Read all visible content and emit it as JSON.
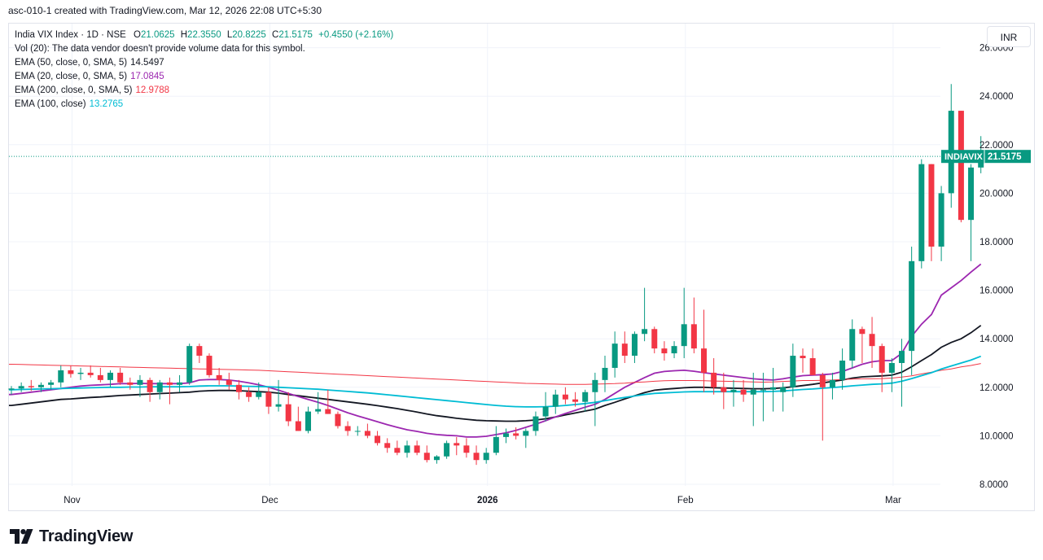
{
  "caption": "asc-010-1 created with TradingView.com, Mar 12, 2026 22:08 UTC+5:30",
  "legend": {
    "symbol": "India VIX Index · 1D · NSE",
    "ohlc": [
      {
        "label": "O",
        "value": "21.0625"
      },
      {
        "label": "H",
        "value": "22.3550"
      },
      {
        "label": "L",
        "value": "20.8225"
      },
      {
        "label": "C",
        "value": "21.5175"
      }
    ],
    "change": "+0.4550 (+2.16%)",
    "volume_note": "Vol (20): The data vendor doesn't provide volume data for this symbol.",
    "indicators": [
      {
        "label": "EMA (50, close, 0, SMA, 5)",
        "value": "14.5497",
        "color": "#131722"
      },
      {
        "label": "EMA (20, close, 0, SMA, 5)",
        "value": "17.0845",
        "color": "#9c27b0"
      },
      {
        "label": "EMA (200, close, 0, SMA, 5)",
        "value": "12.9788",
        "color": "#f23645"
      },
      {
        "label": "EMA (100, close)",
        "value": "13.2765",
        "color": "#00bcd4"
      }
    ]
  },
  "currency": "INR",
  "price_tag": {
    "symbol": "INDIAVIX",
    "value": "21.5175"
  },
  "brand": "TradingView",
  "colors": {
    "up": "#089981",
    "down": "#f23645",
    "ema50": "#131722",
    "ema20": "#9c27b0",
    "ema200": "#f23645",
    "ema100": "#00bcd4",
    "grid": "#f0f3fa"
  },
  "chart_data": {
    "type": "candlestick",
    "title": "India VIX Index · 1D · NSE",
    "ylim": [
      8,
      26
    ],
    "y_ticks": [
      "8.0000",
      "10.0000",
      "12.0000",
      "14.0000",
      "16.0000",
      "18.0000",
      "20.0000",
      "22.0000",
      "24.0000",
      "26.0000"
    ],
    "x_ticks": [
      {
        "label": "Nov",
        "bar_index": 3
      },
      {
        "label": "Dec",
        "bar_index": 23
      },
      {
        "label": "2026",
        "bar_index": 45
      },
      {
        "label": "Feb",
        "bar_index": 65
      },
      {
        "label": "Mar",
        "bar_index": 86
      }
    ],
    "last_price": 21.5175,
    "candles": [
      [
        11.9,
        12.05,
        11.7,
        11.95
      ],
      [
        11.95,
        12.2,
        11.8,
        12.05
      ],
      [
        12.05,
        12.3,
        11.85,
        12.0
      ],
      [
        12.0,
        12.2,
        11.8,
        12.1
      ],
      [
        12.1,
        12.3,
        11.9,
        12.2
      ],
      [
        12.2,
        12.9,
        12.0,
        12.7
      ],
      [
        12.7,
        12.9,
        12.4,
        12.55
      ],
      [
        12.55,
        12.8,
        12.3,
        12.6
      ],
      [
        12.6,
        12.9,
        12.4,
        12.5
      ],
      [
        12.5,
        12.8,
        12.2,
        12.3
      ],
      [
        12.3,
        12.7,
        12.0,
        12.6
      ],
      [
        12.6,
        12.8,
        12.1,
        12.2
      ],
      [
        12.2,
        12.4,
        11.9,
        12.1
      ],
      [
        12.1,
        12.5,
        11.6,
        12.3
      ],
      [
        12.3,
        12.4,
        11.4,
        11.8
      ],
      [
        11.8,
        12.3,
        11.5,
        12.2
      ],
      [
        12.2,
        12.4,
        11.3,
        12.1
      ],
      [
        12.1,
        12.5,
        11.8,
        12.2
      ],
      [
        12.2,
        13.8,
        12.1,
        13.7
      ],
      [
        13.7,
        13.8,
        13.0,
        13.3
      ],
      [
        13.3,
        13.4,
        12.4,
        12.5
      ],
      [
        12.5,
        12.8,
        12.1,
        12.3
      ],
      [
        12.3,
        12.6,
        11.9,
        12.1
      ],
      [
        12.1,
        12.3,
        11.5,
        11.8
      ],
      [
        11.8,
        12.0,
        11.4,
        11.6
      ],
      [
        11.6,
        12.2,
        11.5,
        11.8
      ],
      [
        11.8,
        12.0,
        10.9,
        11.2
      ],
      [
        11.2,
        12.3,
        11.0,
        11.3
      ],
      [
        11.3,
        11.8,
        10.4,
        10.6
      ],
      [
        10.6,
        11.2,
        10.2,
        10.2
      ],
      [
        10.2,
        11.2,
        10.1,
        11.0
      ],
      [
        11.0,
        11.8,
        10.9,
        11.1
      ],
      [
        11.1,
        11.9,
        10.9,
        10.9
      ],
      [
        10.9,
        11.0,
        10.3,
        10.4
      ],
      [
        10.4,
        10.6,
        10.0,
        10.2
      ],
      [
        10.2,
        10.4,
        10.0,
        10.2
      ],
      [
        10.2,
        10.5,
        9.9,
        10.0
      ],
      [
        10.0,
        10.2,
        9.6,
        9.7
      ],
      [
        9.7,
        9.9,
        9.3,
        9.5
      ],
      [
        9.5,
        9.8,
        9.2,
        9.3
      ],
      [
        9.3,
        9.8,
        9.1,
        9.6
      ],
      [
        9.6,
        9.8,
        9.2,
        9.3
      ],
      [
        9.3,
        9.6,
        8.9,
        9.0
      ],
      [
        9.0,
        9.2,
        8.85,
        9.15
      ],
      [
        9.15,
        9.8,
        9.05,
        9.7
      ],
      [
        9.7,
        9.95,
        9.2,
        9.6
      ],
      [
        9.6,
        9.9,
        9.1,
        9.3
      ],
      [
        9.3,
        9.6,
        8.8,
        9.0
      ],
      [
        9.0,
        9.5,
        8.85,
        9.3
      ],
      [
        9.3,
        10.4,
        9.2,
        9.95
      ],
      [
        9.95,
        10.3,
        9.7,
        10.1
      ],
      [
        10.1,
        10.35,
        9.85,
        10.0
      ],
      [
        10.0,
        10.3,
        9.5,
        10.2
      ],
      [
        10.2,
        11.0,
        10.0,
        10.8
      ],
      [
        10.8,
        11.8,
        10.6,
        11.2
      ],
      [
        11.2,
        11.9,
        10.9,
        11.7
      ],
      [
        11.7,
        12.0,
        11.3,
        11.5
      ],
      [
        11.5,
        11.8,
        11.2,
        11.4
      ],
      [
        11.4,
        11.9,
        11.0,
        11.8
      ],
      [
        11.8,
        12.6,
        10.4,
        12.3
      ],
      [
        12.3,
        13.3,
        11.8,
        12.8
      ],
      [
        12.8,
        14.3,
        12.4,
        13.8
      ],
      [
        13.8,
        14.3,
        13.0,
        13.3
      ],
      [
        13.3,
        14.3,
        13.0,
        14.2
      ],
      [
        14.2,
        16.1,
        13.9,
        14.4
      ],
      [
        14.4,
        14.5,
        13.4,
        13.6
      ],
      [
        13.6,
        13.9,
        13.1,
        13.4
      ],
      [
        13.4,
        13.9,
        13.2,
        13.7
      ],
      [
        13.7,
        16.1,
        13.2,
        14.6
      ],
      [
        14.6,
        15.7,
        13.4,
        13.6
      ],
      [
        13.6,
        15.2,
        11.8,
        12.6
      ],
      [
        12.6,
        13.2,
        11.7,
        12.0
      ],
      [
        12.0,
        12.6,
        11.1,
        11.8
      ],
      [
        11.8,
        12.3,
        11.2,
        11.9
      ],
      [
        11.9,
        12.3,
        11.4,
        11.7
      ],
      [
        11.7,
        12.6,
        10.4,
        11.9
      ],
      [
        11.9,
        12.6,
        10.6,
        11.9
      ],
      [
        11.9,
        12.8,
        11.0,
        12.0
      ],
      [
        11.8,
        12.2,
        11.0,
        12.0
      ],
      [
        12.0,
        13.8,
        11.6,
        13.3
      ],
      [
        13.3,
        13.6,
        12.6,
        13.2
      ],
      [
        13.2,
        13.6,
        12.6,
        12.5
      ],
      [
        12.5,
        12.6,
        9.8,
        12.0
      ],
      [
        12.0,
        12.6,
        11.5,
        12.3
      ],
      [
        12.3,
        13.6,
        11.9,
        13.1
      ],
      [
        13.1,
        14.8,
        12.8,
        14.4
      ],
      [
        14.4,
        14.5,
        13.0,
        14.2
      ],
      [
        14.2,
        14.9,
        12.8,
        13.7
      ],
      [
        13.7,
        13.8,
        11.8,
        12.6
      ],
      [
        12.6,
        13.2,
        11.8,
        13.0
      ],
      [
        13.0,
        14.0,
        11.2,
        13.5
      ],
      [
        13.5,
        17.8,
        12.5,
        17.2
      ],
      [
        17.2,
        21.4,
        16.9,
        21.2
      ],
      [
        21.2,
        21.2,
        17.2,
        17.8
      ],
      [
        17.8,
        20.3,
        17.2,
        20.0
      ],
      [
        20.0,
        24.5,
        19.4,
        23.4
      ],
      [
        23.4,
        23.4,
        18.8,
        18.9
      ],
      [
        18.9,
        21.2,
        17.2,
        21.06
      ],
      [
        21.06,
        22.355,
        20.8225,
        21.5175
      ]
    ],
    "series": [
      {
        "name": "EMA (50, close, 0, SMA, 5)",
        "values": [
          11.25,
          11.3,
          11.35,
          11.4,
          11.45,
          11.5,
          11.52,
          11.55,
          11.58,
          11.6,
          11.63,
          11.66,
          11.68,
          11.7,
          11.72,
          11.74,
          11.76,
          11.78,
          11.8,
          11.84,
          11.86,
          11.87,
          11.87,
          11.86,
          11.84,
          11.82,
          11.8,
          11.76,
          11.7,
          11.65,
          11.6,
          11.55,
          11.5,
          11.45,
          11.4,
          11.35,
          11.3,
          11.24,
          11.18,
          11.12,
          11.05,
          10.98,
          10.9,
          10.83,
          10.78,
          10.72,
          10.68,
          10.64,
          10.62,
          10.61,
          10.6,
          10.6,
          10.62,
          10.65,
          10.7,
          10.78,
          10.86,
          10.94,
          11.02,
          11.1,
          11.25,
          11.38,
          11.52,
          11.65,
          11.78,
          11.88,
          11.92,
          11.95,
          11.98,
          12.0,
          12.0,
          11.98,
          11.97,
          11.96,
          11.95,
          11.94,
          11.94,
          11.95,
          11.98,
          12.02,
          12.07,
          12.12,
          12.18,
          12.24,
          12.3,
          12.38,
          12.43,
          12.45,
          12.47,
          12.5,
          12.62,
          12.85,
          13.1,
          13.35,
          13.65,
          13.85,
          14.0,
          14.25,
          14.55
        ]
      },
      {
        "name": "EMA (20, close, 0, SMA, 5)",
        "values": [
          11.7,
          11.75,
          11.8,
          11.85,
          11.9,
          11.95,
          12.0,
          12.05,
          12.08,
          12.1,
          12.12,
          12.15,
          12.15,
          12.16,
          12.15,
          12.15,
          12.15,
          12.15,
          12.18,
          12.3,
          12.32,
          12.32,
          12.3,
          12.25,
          12.18,
          12.1,
          12.0,
          11.88,
          11.75,
          11.62,
          11.5,
          11.38,
          11.25,
          11.1,
          10.95,
          10.82,
          10.7,
          10.58,
          10.46,
          10.35,
          10.25,
          10.18,
          10.1,
          10.05,
          10.02,
          10.0,
          9.95,
          9.95,
          9.98,
          10.05,
          10.12,
          10.22,
          10.35,
          10.48,
          10.62,
          10.78,
          10.92,
          11.05,
          11.18,
          11.3,
          11.5,
          11.75,
          12.0,
          12.2,
          12.4,
          12.58,
          12.65,
          12.68,
          12.7,
          12.66,
          12.6,
          12.55,
          12.5,
          12.45,
          12.4,
          12.35,
          12.32,
          12.3,
          12.35,
          12.42,
          12.48,
          12.5,
          12.52,
          12.55,
          12.65,
          12.8,
          12.95,
          13.05,
          13.1,
          13.1,
          13.4,
          14.1,
          14.6,
          15.0,
          15.8,
          16.1,
          16.4,
          16.75,
          17.08
        ]
      },
      {
        "name": "EMA (200, close, 0, SMA, 5)",
        "values": [
          12.95,
          12.94,
          12.93,
          12.92,
          12.91,
          12.9,
          12.89,
          12.88,
          12.87,
          12.86,
          12.85,
          12.84,
          12.83,
          12.82,
          12.81,
          12.8,
          12.79,
          12.78,
          12.77,
          12.76,
          12.75,
          12.74,
          12.73,
          12.72,
          12.71,
          12.7,
          12.68,
          12.66,
          12.64,
          12.62,
          12.6,
          12.58,
          12.56,
          12.54,
          12.52,
          12.5,
          12.48,
          12.46,
          12.44,
          12.42,
          12.4,
          12.38,
          12.36,
          12.34,
          12.32,
          12.3,
          12.28,
          12.26,
          12.24,
          12.22,
          12.2,
          12.18,
          12.16,
          12.15,
          12.14,
          12.13,
          12.12,
          12.12,
          12.12,
          12.13,
          12.14,
          12.15,
          12.17,
          12.2,
          12.22,
          12.25,
          12.27,
          12.28,
          12.28,
          12.28,
          12.27,
          12.26,
          12.25,
          12.24,
          12.23,
          12.22,
          12.21,
          12.22,
          12.24,
          12.26,
          12.28,
          12.28,
          12.29,
          12.3,
          12.32,
          12.34,
          12.35,
          12.35,
          12.36,
          12.38,
          12.42,
          12.47,
          12.55,
          12.62,
          12.7,
          12.76,
          12.84,
          12.9,
          12.98
        ]
      },
      {
        "name": "EMA (100, close)",
        "values": [
          11.9,
          11.91,
          11.92,
          11.93,
          11.94,
          11.95,
          11.96,
          11.97,
          11.98,
          11.99,
          12.0,
          12.0,
          12.01,
          12.01,
          12.02,
          12.02,
          12.02,
          12.02,
          12.03,
          12.05,
          12.06,
          12.06,
          12.06,
          12.05,
          12.04,
          12.03,
          12.02,
          12.0,
          11.98,
          11.96,
          11.94,
          11.92,
          11.89,
          11.86,
          11.83,
          11.8,
          11.77,
          11.73,
          11.69,
          11.65,
          11.61,
          11.57,
          11.53,
          11.49,
          11.45,
          11.41,
          11.37,
          11.33,
          11.29,
          11.25,
          11.22,
          11.2,
          11.19,
          11.19,
          11.2,
          11.22,
          11.25,
          11.29,
          11.33,
          11.38,
          11.45,
          11.52,
          11.58,
          11.64,
          11.7,
          11.75,
          11.77,
          11.79,
          11.81,
          11.82,
          11.82,
          11.82,
          11.82,
          11.82,
          11.82,
          11.82,
          11.82,
          11.83,
          11.85,
          11.88,
          11.91,
          11.93,
          11.96,
          11.99,
          12.02,
          12.06,
          12.09,
          12.12,
          12.14,
          12.17,
          12.25,
          12.36,
          12.48,
          12.6,
          12.75,
          12.88,
          13.0,
          13.12,
          13.28
        ]
      }
    ]
  }
}
